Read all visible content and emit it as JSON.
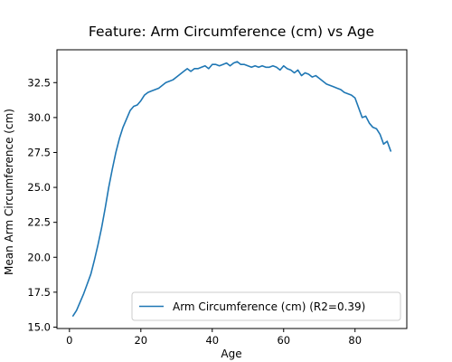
{
  "chart_data": {
    "type": "line",
    "title": "Feature: Arm Circumference (cm) vs Age",
    "xlabel": "Age",
    "ylabel": "Mean Arm Circumference (cm)",
    "xlim": [
      -3.5,
      94.5
    ],
    "ylim": [
      14.9,
      34.85
    ],
    "xticks": [
      0,
      20,
      40,
      60,
      80
    ],
    "yticks": [
      15.0,
      17.5,
      20.0,
      22.5,
      25.0,
      27.5,
      30.0,
      32.5
    ],
    "xtick_labels": [
      "0",
      "20",
      "40",
      "60",
      "80"
    ],
    "ytick_labels": [
      "15.0",
      "17.5",
      "20.0",
      "22.5",
      "25.0",
      "27.5",
      "30.0",
      "32.5"
    ],
    "grid": false,
    "legend_position": "bottom-right",
    "series": [
      {
        "name": "Arm Circumference (cm) (R2=0.39)",
        "color": "#1f77b4",
        "x": [
          1,
          2,
          3,
          4,
          5,
          6,
          7,
          8,
          9,
          10,
          11,
          12,
          13,
          14,
          15,
          16,
          17,
          18,
          19,
          20,
          21,
          22,
          23,
          24,
          25,
          26,
          27,
          28,
          29,
          30,
          31,
          32,
          33,
          34,
          35,
          36,
          37,
          38,
          39,
          40,
          41,
          42,
          43,
          44,
          45,
          46,
          47,
          48,
          49,
          50,
          51,
          52,
          53,
          54,
          55,
          56,
          57,
          58,
          59,
          60,
          61,
          62,
          63,
          64,
          65,
          66,
          67,
          68,
          69,
          70,
          71,
          72,
          73,
          74,
          75,
          76,
          77,
          78,
          79,
          80,
          81,
          82,
          83,
          84,
          85,
          86,
          87,
          88,
          89,
          90
        ],
        "values": [
          15.8,
          16.2,
          16.8,
          17.4,
          18.1,
          18.8,
          19.8,
          20.9,
          22.1,
          23.5,
          25.0,
          26.3,
          27.5,
          28.5,
          29.3,
          29.9,
          30.5,
          30.8,
          30.9,
          31.2,
          31.6,
          31.8,
          31.9,
          32.0,
          32.1,
          32.3,
          32.5,
          32.6,
          32.7,
          32.9,
          33.1,
          33.3,
          33.5,
          33.3,
          33.5,
          33.5,
          33.6,
          33.7,
          33.5,
          33.8,
          33.8,
          33.7,
          33.8,
          33.9,
          33.7,
          33.9,
          34.0,
          33.8,
          33.8,
          33.7,
          33.6,
          33.7,
          33.6,
          33.7,
          33.6,
          33.6,
          33.7,
          33.6,
          33.4,
          33.7,
          33.5,
          33.4,
          33.2,
          33.4,
          33.0,
          33.2,
          33.1,
          32.9,
          33.0,
          32.8,
          32.6,
          32.4,
          32.3,
          32.2,
          32.1,
          32.0,
          31.8,
          31.7,
          31.6,
          31.4,
          30.7,
          30.0,
          30.1,
          29.6,
          29.3,
          29.2,
          28.8,
          28.1,
          28.3,
          27.6
        ]
      }
    ]
  }
}
